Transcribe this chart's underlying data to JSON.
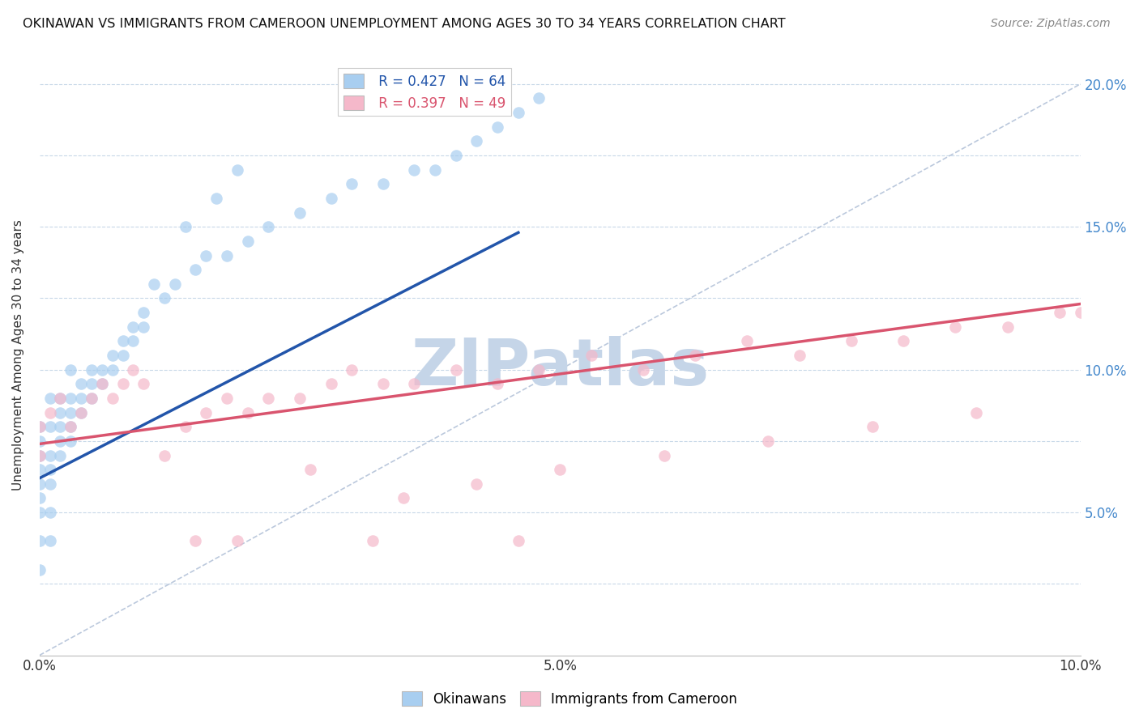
{
  "title": "OKINAWAN VS IMMIGRANTS FROM CAMEROON UNEMPLOYMENT AMONG AGES 30 TO 34 YEARS CORRELATION CHART",
  "source": "Source: ZipAtlas.com",
  "ylabel": "Unemployment Among Ages 30 to 34 years",
  "xlim": [
    0.0,
    0.1
  ],
  "ylim": [
    0.0,
    0.21
  ],
  "xtick_vals": [
    0.0,
    0.01,
    0.02,
    0.03,
    0.04,
    0.05,
    0.06,
    0.07,
    0.08,
    0.09,
    0.1
  ],
  "xticklabels": [
    "0.0%",
    "",
    "",
    "",
    "",
    "5.0%",
    "",
    "",
    "",
    "",
    "10.0%"
  ],
  "ytick_vals": [
    0.0,
    0.025,
    0.05,
    0.075,
    0.1,
    0.125,
    0.15,
    0.175,
    0.2
  ],
  "yticklabels": [
    "",
    "",
    "5.0%",
    "",
    "10.0%",
    "",
    "15.0%",
    "",
    "20.0%"
  ],
  "legend1_r": "R = 0.427",
  "legend1_n": "N = 64",
  "legend2_r": "R = 0.397",
  "legend2_n": "N = 49",
  "blue_color": "#a8cef0",
  "pink_color": "#f5b8ca",
  "blue_line_color": "#2255aa",
  "pink_line_color": "#d9546e",
  "diagonal_color": "#aabbd4",
  "watermark": "ZIPatlas",
  "watermark_color": "#c5d5e8",
  "blue_x": [
    0.0,
    0.0,
    0.0,
    0.0,
    0.0,
    0.0,
    0.0,
    0.0,
    0.0,
    0.001,
    0.001,
    0.001,
    0.001,
    0.001,
    0.001,
    0.001,
    0.002,
    0.002,
    0.002,
    0.002,
    0.002,
    0.003,
    0.003,
    0.003,
    0.003,
    0.003,
    0.004,
    0.004,
    0.004,
    0.005,
    0.005,
    0.005,
    0.006,
    0.006,
    0.007,
    0.007,
    0.008,
    0.008,
    0.009,
    0.009,
    0.01,
    0.01,
    0.012,
    0.013,
    0.015,
    0.016,
    0.018,
    0.02,
    0.022,
    0.025,
    0.028,
    0.03,
    0.033,
    0.036,
    0.038,
    0.04,
    0.042,
    0.044,
    0.046,
    0.048,
    0.011,
    0.014,
    0.017,
    0.019
  ],
  "blue_y": [
    0.04,
    0.05,
    0.055,
    0.06,
    0.065,
    0.07,
    0.075,
    0.08,
    0.03,
    0.05,
    0.06,
    0.065,
    0.07,
    0.08,
    0.09,
    0.04,
    0.07,
    0.075,
    0.08,
    0.085,
    0.09,
    0.075,
    0.08,
    0.085,
    0.09,
    0.1,
    0.085,
    0.09,
    0.095,
    0.09,
    0.095,
    0.1,
    0.095,
    0.1,
    0.1,
    0.105,
    0.105,
    0.11,
    0.11,
    0.115,
    0.115,
    0.12,
    0.125,
    0.13,
    0.135,
    0.14,
    0.14,
    0.145,
    0.15,
    0.155,
    0.16,
    0.165,
    0.165,
    0.17,
    0.17,
    0.175,
    0.18,
    0.185,
    0.19,
    0.195,
    0.13,
    0.15,
    0.16,
    0.17
  ],
  "blue_line_x": [
    0.0,
    0.046
  ],
  "blue_line_y": [
    0.062,
    0.148
  ],
  "pink_x": [
    0.0,
    0.0,
    0.001,
    0.002,
    0.003,
    0.004,
    0.005,
    0.006,
    0.007,
    0.008,
    0.009,
    0.01,
    0.012,
    0.014,
    0.016,
    0.018,
    0.02,
    0.022,
    0.025,
    0.028,
    0.03,
    0.033,
    0.036,
    0.04,
    0.044,
    0.048,
    0.053,
    0.058,
    0.063,
    0.068,
    0.073,
    0.078,
    0.083,
    0.088,
    0.093,
    0.098,
    0.026,
    0.035,
    0.042,
    0.05,
    0.06,
    0.07,
    0.08,
    0.09,
    0.1,
    0.015,
    0.019,
    0.032,
    0.046
  ],
  "pink_y": [
    0.07,
    0.08,
    0.085,
    0.09,
    0.08,
    0.085,
    0.09,
    0.095,
    0.09,
    0.095,
    0.1,
    0.095,
    0.07,
    0.08,
    0.085,
    0.09,
    0.085,
    0.09,
    0.09,
    0.095,
    0.1,
    0.095,
    0.095,
    0.1,
    0.095,
    0.1,
    0.105,
    0.1,
    0.105,
    0.11,
    0.105,
    0.11,
    0.11,
    0.115,
    0.115,
    0.12,
    0.065,
    0.055,
    0.06,
    0.065,
    0.07,
    0.075,
    0.08,
    0.085,
    0.12,
    0.04,
    0.04,
    0.04,
    0.04
  ],
  "pink_line_x": [
    0.0,
    0.1
  ],
  "pink_line_y": [
    0.074,
    0.123
  ]
}
